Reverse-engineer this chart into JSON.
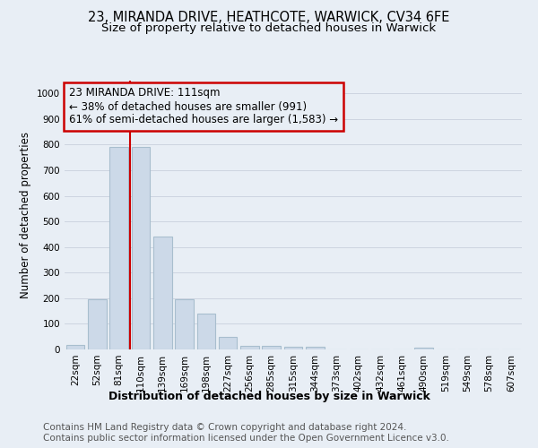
{
  "title1": "23, MIRANDA DRIVE, HEATHCOTE, WARWICK, CV34 6FE",
  "title2": "Size of property relative to detached houses in Warwick",
  "xlabel": "Distribution of detached houses by size in Warwick",
  "ylabel": "Number of detached properties",
  "bar_labels": [
    "22sqm",
    "52sqm",
    "81sqm",
    "110sqm",
    "139sqm",
    "169sqm",
    "198sqm",
    "227sqm",
    "256sqm",
    "285sqm",
    "315sqm",
    "344sqm",
    "373sqm",
    "402sqm",
    "432sqm",
    "461sqm",
    "490sqm",
    "519sqm",
    "549sqm",
    "578sqm",
    "607sqm"
  ],
  "bar_values": [
    18,
    195,
    790,
    790,
    440,
    195,
    140,
    48,
    15,
    13,
    10,
    10,
    0,
    0,
    0,
    0,
    8,
    0,
    0,
    0,
    0
  ],
  "bar_color": "#ccd9e8",
  "bar_edgecolor": "#a8bece",
  "annotation_line0": "23 MIRANDA DRIVE: 111sqm",
  "annotation_line1": "← 38% of detached houses are smaller (991)",
  "annotation_line2": "61% of semi-detached houses are larger (1,583) →",
  "vline_color": "#cc0000",
  "annotation_box_edgecolor": "#cc0000",
  "ylim": [
    0,
    1050
  ],
  "yticks": [
    0,
    100,
    200,
    300,
    400,
    500,
    600,
    700,
    800,
    900,
    1000
  ],
  "grid_color": "#c8d0dc",
  "bg_color": "#e8eef5",
  "plot_bg_color": "#e8eef5",
  "footer_bg": "#ffffff",
  "footer": "Contains HM Land Registry data © Crown copyright and database right 2024.\nContains public sector information licensed under the Open Government Licence v3.0.",
  "title1_fontsize": 10.5,
  "title2_fontsize": 9.5,
  "xlabel_fontsize": 9,
  "ylabel_fontsize": 8.5,
  "tick_fontsize": 7.5,
  "annotation_fontsize": 8.5,
  "footer_fontsize": 7.5
}
